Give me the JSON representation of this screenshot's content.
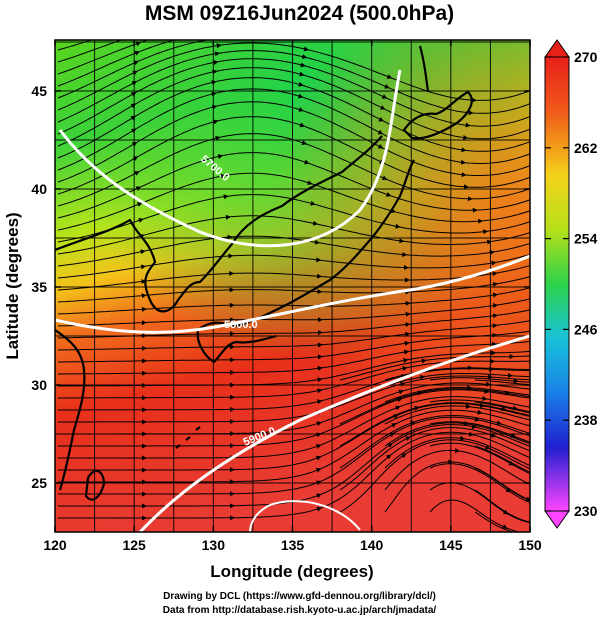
{
  "title": "MSM 09Z16Jun2024 (500.0hPa)",
  "x_axis": {
    "label": "Longitude (degrees)",
    "ticks": [
      "120",
      "125",
      "130",
      "135",
      "140",
      "145",
      "150"
    ]
  },
  "y_axis": {
    "label": "Latitude  (degrees)",
    "ticks": [
      "25",
      "30",
      "35",
      "40",
      "45"
    ]
  },
  "colorbar": {
    "ticks": [
      "230",
      "238",
      "246",
      "254",
      "262",
      "270"
    ]
  },
  "contours": [
    {
      "label": "5800.0"
    },
    {
      "label": "5900.0"
    },
    {
      "label": "5700.0"
    }
  ],
  "credits": {
    "line1": "Drawing by DCL (https://www.gfd-dennou.org/library/dcl/)",
    "line2": "Data from http://database.rish.kyoto-u.ac.jp/arch/jmadata/"
  },
  "colors": {
    "cold": "#2ecc2e",
    "mid": "#f0e010",
    "warm": "#e8201a",
    "colorbar_top": "#e8201a",
    "colorbar_bottom": "#ff44ff"
  }
}
